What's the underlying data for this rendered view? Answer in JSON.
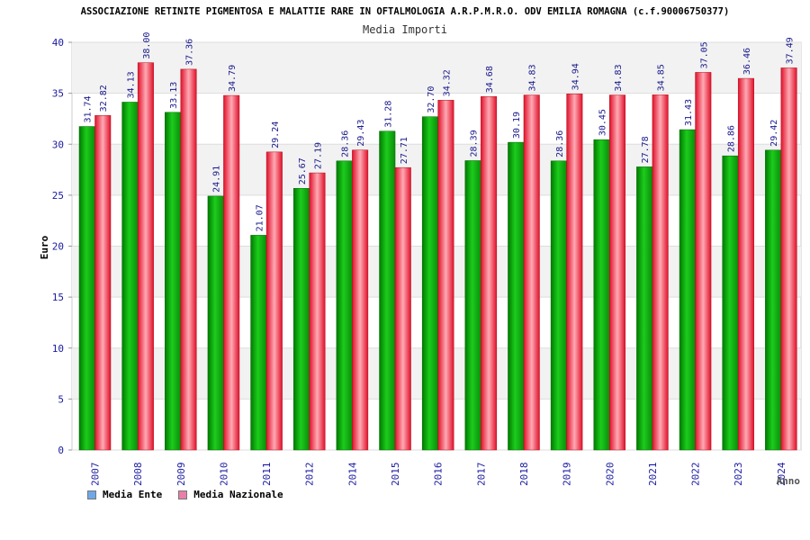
{
  "chart_data": {
    "type": "bar",
    "title": "ASSOCIAZIONE RETINITE PIGMENTOSA E MALATTIE RARE IN OFTALMOLOGIA A.R.P.M.R.O. ODV EMILIA ROMAGNA (c.f.90006750377)",
    "subtitle": "Media Importi",
    "xlabel": "Anno",
    "ylabel": "Euro",
    "ylim": [
      0,
      40
    ],
    "yticks": [
      0,
      5,
      10,
      15,
      20,
      25,
      30,
      35,
      40
    ],
    "grid": true,
    "legend_position": "bottom-left",
    "categories": [
      "2007",
      "2008",
      "2009",
      "2010",
      "2011",
      "2012",
      "2014",
      "2015",
      "2016",
      "2017",
      "2018",
      "2019",
      "2020",
      "2021",
      "2022",
      "2023",
      "2024"
    ],
    "series": [
      {
        "name": "Media Ente",
        "color": "#0dac0d",
        "legend_color": "#6fa8e8",
        "values": [
          31.74,
          34.13,
          33.13,
          24.91,
          21.07,
          25.67,
          28.36,
          31.28,
          32.7,
          28.39,
          30.19,
          28.36,
          30.45,
          27.78,
          31.43,
          28.86,
          29.42
        ],
        "labels": [
          "31.74",
          "34.13",
          "33.13",
          "24.91",
          "21.07",
          "25.67",
          "28.36",
          "31.28",
          "32.70",
          "28.39",
          "30.19",
          "28.36",
          "30.45",
          "27.78",
          "31.43",
          "28.86",
          "29.42"
        ]
      },
      {
        "name": "Media Nazionale",
        "color": "#e8283c",
        "legend_color": "#e87fa8",
        "values": [
          32.82,
          38.0,
          37.36,
          34.79,
          29.24,
          27.19,
          29.43,
          27.71,
          34.32,
          34.68,
          34.83,
          34.94,
          34.83,
          34.85,
          37.05,
          36.46,
          37.49
        ],
        "labels": [
          "32.82",
          "38.00",
          "37.36",
          "34.79",
          "29.24",
          "27.19",
          "29.43",
          "27.71",
          "34.32",
          "34.68",
          "34.83",
          "34.94",
          "34.83",
          "34.85",
          "37.05",
          "36.46",
          "37.49"
        ]
      }
    ]
  }
}
